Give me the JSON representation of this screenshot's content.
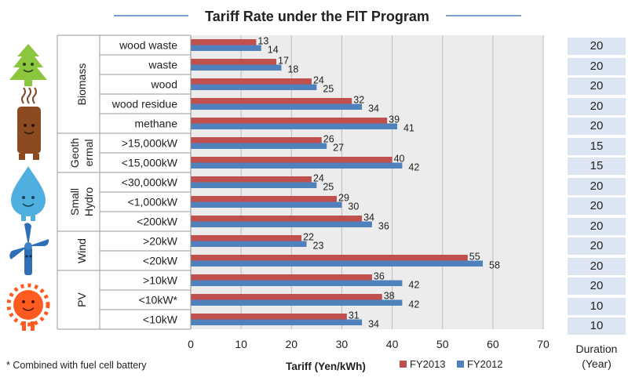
{
  "title": "Tariff Rate under the FIT Program",
  "footnote": "* Combined with fuel cell battery",
  "duration_label_line1": "Duration",
  "duration_label_line2": "(Year)",
  "colors": {
    "FY2013": "#c0504d",
    "FY2012": "#4f81bd",
    "duration_bg": "#dce6f2",
    "plot_bg": "#ececec",
    "title_rule": "#4f81bd"
  },
  "icons": [
    "tree-mascot-icon",
    "chimney-mascot-icon",
    "water-drop-mascot-icon",
    "wind-turbine-mascot-icon",
    "sun-mascot-icon"
  ],
  "chart_data": {
    "type": "bar",
    "orientation": "horizontal",
    "title": "Tariff Rate under the FIT Program",
    "xlabel": "Tariff (Yen/kWh)",
    "xlim": [
      0,
      70
    ],
    "xticks": [
      0,
      10,
      20,
      30,
      40,
      50,
      60,
      70
    ],
    "grid": true,
    "legend": "bottom",
    "groups": [
      {
        "name": "Biomass",
        "label_lines": [
          "Biomass"
        ],
        "start": 0,
        "end": 5
      },
      {
        "name": "Geothermal",
        "label_lines": [
          "Geoth",
          "ermal"
        ],
        "start": 5,
        "end": 7
      },
      {
        "name": "Small Hydro",
        "label_lines": [
          "Small",
          "Hydro"
        ],
        "start": 7,
        "end": 10
      },
      {
        "name": "Wind",
        "label_lines": [
          "Wind"
        ],
        "start": 10,
        "end": 12
      },
      {
        "name": "PV",
        "label_lines": [
          "PV"
        ],
        "start": 12,
        "end": 15
      }
    ],
    "categories": [
      "wood waste",
      "waste",
      "wood",
      "wood residue",
      "methane",
      ">15,000kW",
      "<15,000kW",
      "<30,000kW",
      "<1,000kW",
      "<200kW",
      ">20kW",
      "<20kW",
      ">10kW",
      "<10kW*",
      "<10kW"
    ],
    "series": [
      {
        "name": "FY2013",
        "values": [
          13,
          17,
          24,
          32,
          39,
          26,
          40,
          24,
          29,
          34,
          22,
          55,
          36,
          38,
          31
        ]
      },
      {
        "name": "FY2012",
        "values": [
          14,
          18,
          25,
          34,
          41,
          27,
          42,
          25,
          30,
          36,
          23,
          58,
          42,
          42,
          34
        ]
      }
    ],
    "duration": [
      20,
      20,
      20,
      20,
      20,
      15,
      15,
      20,
      20,
      20,
      20,
      20,
      20,
      10,
      10
    ]
  }
}
